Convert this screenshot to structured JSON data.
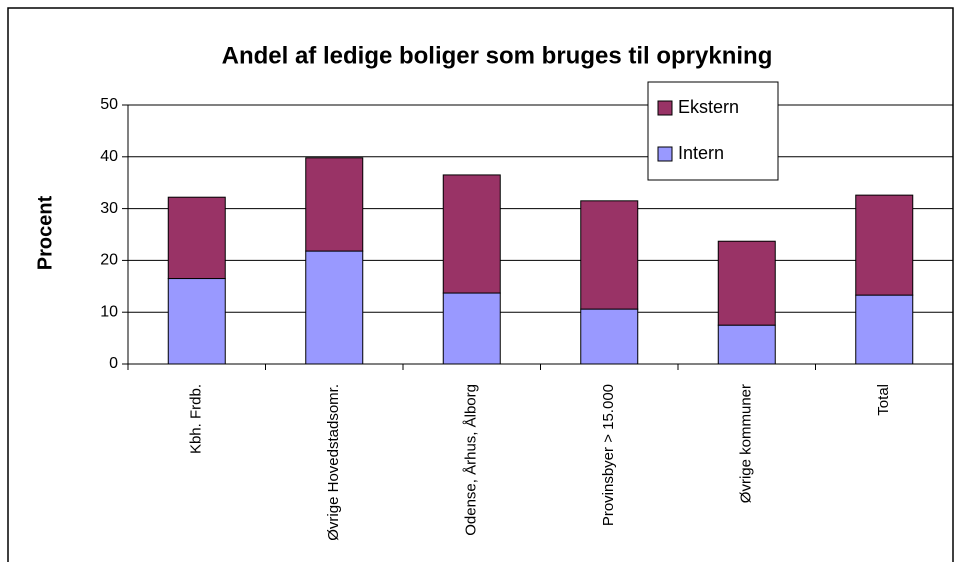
{
  "chart_data": {
    "type": "stacked_bar",
    "title": "Andel af ledige boliger som bruges til oprykning",
    "ylabel": "Procent",
    "categories": [
      "Kbh. Frdb.",
      "Øvrige Hovedstadsomr.",
      "Odense, Århus, Ålborg",
      "Provinsbyer > 15.000",
      "Øvrige kommuner",
      "Total"
    ],
    "series": [
      {
        "name": "Intern",
        "color": "#9999ff",
        "values": [
          16.5,
          21.8,
          13.7,
          10.6,
          7.5,
          13.3
        ]
      },
      {
        "name": "Ekstern",
        "color": "#993366",
        "values": [
          15.7,
          18.0,
          22.8,
          20.9,
          16.2,
          19.3
        ]
      }
    ],
    "ylim": [
      0,
      50
    ],
    "yticks": [
      0,
      10,
      20,
      30,
      40,
      50
    ],
    "grid": true,
    "legend": "upper right"
  }
}
